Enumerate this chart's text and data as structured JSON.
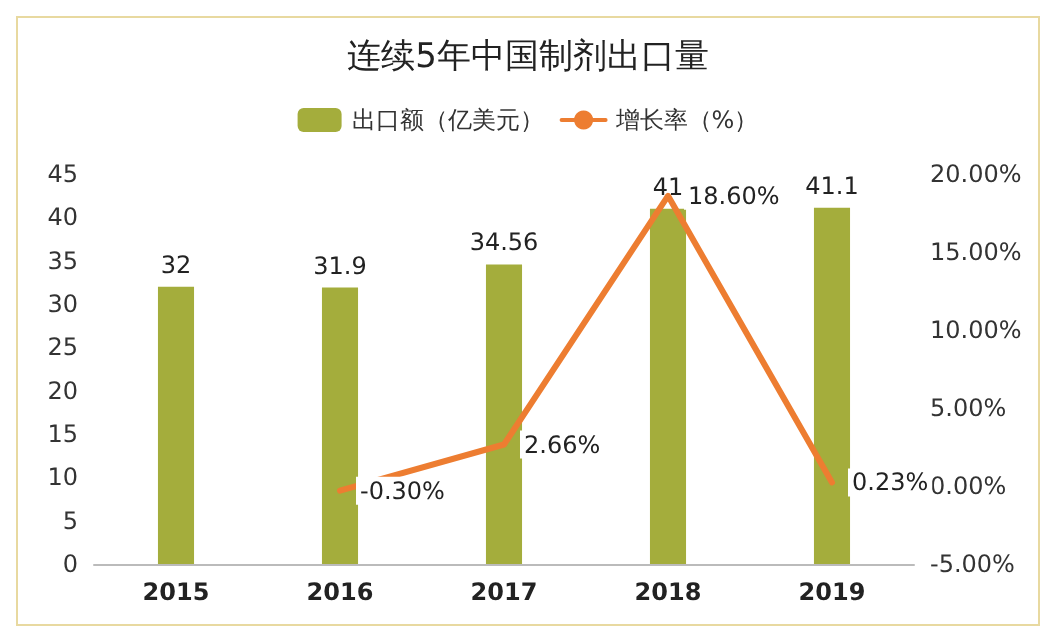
{
  "chart_data": {
    "type": "bar",
    "title": "连续5年中国制剂出口量",
    "categories": [
      "2015",
      "2016",
      "2017",
      "2018",
      "2019"
    ],
    "series": [
      {
        "name": "出口额（亿美元）",
        "color": "#a4ad3c",
        "values": [
          32,
          31.9,
          34.56,
          41,
          41.1
        ],
        "value_labels": [
          "32",
          "31.9",
          "34.56",
          "41",
          "41.1"
        ]
      },
      {
        "name": "增长率（%）",
        "type": "line",
        "axis": "y2",
        "color": "#ed7d31",
        "values": [
          null,
          -0.3,
          2.66,
          18.6,
          0.23
        ],
        "value_labels": [
          null,
          "-0.30%",
          "2.66%",
          "18.60%",
          "0.23%"
        ]
      }
    ],
    "ylim": [
      0,
      45
    ],
    "yticks": [
      0,
      5,
      10,
      15,
      20,
      25,
      30,
      35,
      40,
      45
    ],
    "y2lim": [
      -5,
      20
    ],
    "y2ticks": [
      {
        "value": -5,
        "label": "-5.00%"
      },
      {
        "value": 0,
        "label": "0.00%"
      },
      {
        "value": 5,
        "label": "5.00%"
      },
      {
        "value": 10,
        "label": "10.00%"
      },
      {
        "value": 15,
        "label": "15.00%"
      },
      {
        "value": 20,
        "label": "20.00%"
      }
    ],
    "grid": false,
    "legend": "top",
    "marker": "none"
  }
}
